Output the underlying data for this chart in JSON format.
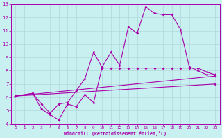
{
  "xlabel": "Windchill (Refroidissement éolien,°C)",
  "bg_color": "#c8f0f0",
  "grid_color": "#b0d8d8",
  "line_color": "#aa00aa",
  "xlim": [
    -0.5,
    23.5
  ],
  "ylim": [
    4,
    13
  ],
  "xticks": [
    0,
    1,
    2,
    3,
    4,
    5,
    6,
    7,
    8,
    9,
    10,
    11,
    12,
    13,
    14,
    15,
    16,
    17,
    18,
    19,
    20,
    21,
    22,
    23
  ],
  "yticks": [
    4,
    5,
    6,
    7,
    8,
    9,
    10,
    11,
    12,
    13
  ],
  "curves": [
    {
      "x": [
        0,
        2,
        3,
        4,
        5,
        6,
        7,
        8,
        9,
        10,
        11,
        12,
        13,
        14,
        15,
        16,
        17,
        18,
        19,
        20,
        21,
        22,
        23
      ],
      "y": [
        6.1,
        6.3,
        5.1,
        4.7,
        4.3,
        5.5,
        5.3,
        6.2,
        5.6,
        8.3,
        9.4,
        8.4,
        11.3,
        10.8,
        12.8,
        12.3,
        12.2,
        12.2,
        11.1,
        8.3,
        8.0,
        7.7,
        7.7
      ]
    },
    {
      "x": [
        0,
        2,
        3,
        4,
        5,
        6,
        7,
        8,
        9,
        10,
        11,
        12,
        13,
        14,
        15,
        16,
        17,
        18,
        19,
        20,
        21,
        22,
        23
      ],
      "y": [
        6.1,
        6.3,
        5.5,
        4.8,
        5.5,
        5.6,
        6.5,
        7.4,
        9.4,
        8.2,
        8.2,
        8.2,
        8.2,
        8.2,
        8.2,
        8.2,
        8.2,
        8.2,
        8.2,
        8.2,
        8.2,
        7.9,
        7.7
      ]
    },
    {
      "x": [
        0,
        23
      ],
      "y": [
        6.1,
        7.6
      ]
    },
    {
      "x": [
        0,
        23
      ],
      "y": [
        6.1,
        7.0
      ]
    }
  ]
}
